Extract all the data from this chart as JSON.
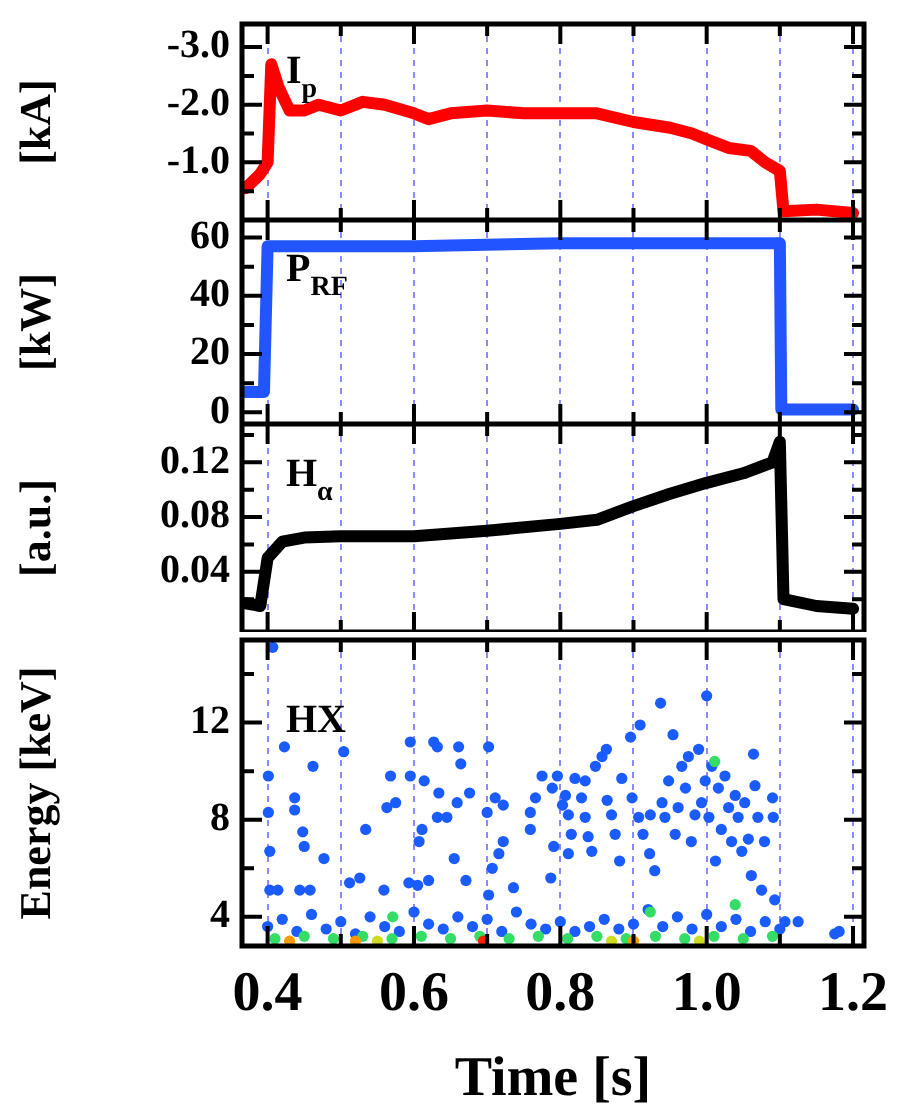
{
  "chart_data": [
    {
      "type": "line",
      "ylabel": "[kA]",
      "annotations": [
        "I$_{p}$"
      ],
      "grid": "x",
      "tick_labels": "y",
      "marker": "none",
      "xlim": [
        0.365,
        1.215
      ],
      "xticks": [
        0.4,
        {
          "value": 0.5,
          "label": null
        },
        0.6,
        {
          "value": 0.7,
          "label": null
        },
        0.8,
        {
          "value": 0.9,
          "label": null
        },
        1,
        {
          "value": 1.1,
          "label": null
        },
        1.2
      ],
      "ylim": [
        0,
        -3.4
      ],
      "yticks": [
        {
          "value": -3,
          "label": "-3.0"
        },
        {
          "value": -2.5,
          "label": null
        },
        {
          "value": -2,
          "label": "-2.0"
        },
        {
          "value": -1.5,
          "label": null
        },
        {
          "value": -1,
          "label": "-1.0"
        },
        {
          "value": -0.5,
          "label": null
        }
      ],
      "x": [
        0.37,
        0.39,
        0.4,
        0.405,
        0.415,
        0.43,
        0.45,
        0.47,
        0.5,
        0.53,
        0.56,
        0.6,
        0.62,
        0.65,
        0.7,
        0.75,
        0.8,
        0.85,
        0.9,
        0.95,
        0.98,
        1.0,
        1.03,
        1.06,
        1.08,
        1.1,
        1.105,
        1.15,
        1.2
      ],
      "series": [
        {
          "color": "#ff0000",
          "values": [
            -0.55,
            -0.8,
            -1.0,
            -2.7,
            -2.3,
            -1.9,
            -1.9,
            -2.0,
            -1.9,
            -2.05,
            -2.0,
            -1.85,
            -1.75,
            -1.85,
            -1.9,
            -1.85,
            -1.85,
            -1.85,
            -1.7,
            -1.6,
            -1.5,
            -1.4,
            -1.25,
            -1.2,
            -1.0,
            -0.85,
            -0.15,
            -0.18,
            -0.12
          ]
        }
      ]
    },
    {
      "type": "line",
      "ylabel": "[kW]",
      "annotations": [
        "P$_{RF}$"
      ],
      "grid": "x",
      "tick_labels": "y",
      "marker": "none",
      "xlim": [
        0.365,
        1.215
      ],
      "xticks": [
        0.4,
        {
          "value": 0.5,
          "label": null
        },
        0.6,
        {
          "value": 0.7,
          "label": null
        },
        0.8,
        {
          "value": 0.9,
          "label": null
        },
        1,
        {
          "value": 1.1,
          "label": null
        },
        1.2
      ],
      "ylim": [
        -4,
        66
      ],
      "yticks": [
        0,
        {
          "value": 10,
          "label": null
        },
        20,
        {
          "value": 30,
          "label": null
        },
        40,
        {
          "value": 50,
          "label": null
        },
        60
      ],
      "x": [
        0.37,
        0.395,
        0.4,
        0.6,
        0.8,
        1.0,
        1.1,
        1.102,
        1.2
      ],
      "series": [
        {
          "color": "#2255ff",
          "values": [
            7,
            7,
            57,
            57,
            58,
            58,
            58,
            1,
            1
          ]
        }
      ]
    },
    {
      "type": "line",
      "ylabel": "[a.u.]",
      "annotations": [
        "H$_{α}$"
      ],
      "grid": "x",
      "tick_labels": "y",
      "marker": "none",
      "xlim": [
        0.365,
        1.215
      ],
      "xticks": [
        0.4,
        {
          "value": 0.5,
          "label": null
        },
        0.6,
        {
          "value": 0.7,
          "label": null
        },
        0.8,
        {
          "value": 0.9,
          "label": null
        },
        1,
        {
          "value": 1.1,
          "label": null
        },
        1.2
      ],
      "ylim": [
        -0.004,
        0.148
      ],
      "yticks": [
        {
          "value": 0.02,
          "label": null
        },
        0.04,
        {
          "value": 0.06,
          "label": null
        },
        0.08,
        {
          "value": 0.1,
          "label": null
        },
        0.12,
        {
          "value": 0.14,
          "label": null
        }
      ],
      "x": [
        0.37,
        0.39,
        0.4,
        0.42,
        0.45,
        0.5,
        0.6,
        0.7,
        0.8,
        0.85,
        0.9,
        0.95,
        1.0,
        1.05,
        1.09,
        1.1,
        1.105,
        1.15,
        1.2
      ],
      "series": [
        {
          "color": "#000000",
          "values": [
            0.017,
            0.015,
            0.05,
            0.062,
            0.065,
            0.066,
            0.066,
            0.07,
            0.075,
            0.078,
            0.088,
            0.097,
            0.105,
            0.112,
            0.12,
            0.135,
            0.02,
            0.015,
            0.013
          ]
        }
      ]
    },
    {
      "type": "scatter",
      "ylabel": "Energy [keV]",
      "xlabel": "Time [s]",
      "annotations": [
        "HX"
      ],
      "grid": "x",
      "marker": "circle",
      "xlim": [
        0.365,
        1.215
      ],
      "xticks": [
        0.4,
        {
          "value": 0.5,
          "label": null
        },
        0.6,
        {
          "value": 0.7,
          "label": null
        },
        0.8,
        {
          "value": 0.9,
          "label": null
        },
        {
          "value": 1,
          "label": "1.0"
        },
        {
          "value": 1.1,
          "label": null
        },
        1.2
      ],
      "ylim": [
        2.8,
        15.4
      ],
      "yticks": [
        4,
        {
          "value": 6,
          "label": null
        },
        8,
        {
          "value": 10,
          "label": null
        },
        12,
        {
          "value": 14,
          "label": null
        }
      ],
      "series": [
        {
          "color": "#1a5cff",
          "x": [
            0.407,
            0.423,
            0.401,
            0.401,
            0.403,
            0.403,
            0.414,
            0.462,
            0.437,
            0.437,
            0.448,
            0.45,
            0.477,
            0.444,
            0.458,
            0.504,
            0.512,
            0.526,
            0.534,
            0.559,
            0.563,
            0.568,
            0.575,
            0.595,
            0.595,
            0.593,
            0.605,
            0.611,
            0.607,
            0.614,
            0.62,
            0.627,
            0.632,
            0.634,
            0.632,
            0.645,
            0.655,
            0.661,
            0.664,
            0.659,
            0.676,
            0.671,
            0.702,
            0.7,
            0.711,
            0.722,
            0.707,
            0.716,
            0.722,
            0.702,
            0.736,
            0.759,
            0.759,
            0.766,
            0.775,
            0.787,
            0.791,
            0.789,
            0.796,
            0.803,
            0.807,
            0.811,
            0.815,
            0.811,
            0.82,
            0.829,
            0.834,
            0.838,
            0.843,
            0.834,
            0.848,
            0.857,
            0.863,
            0.864,
            0.87,
            0.875,
            0.881,
            0.884,
            0.896,
            0.909,
            0.898,
            0.907,
            0.913,
            0.922,
            0.929,
            0.937,
            0.923,
            0.939,
            0.943,
            0.948,
            0.954,
            0.957,
            0.961,
            0.966,
            0.971,
            0.975,
            0.979,
            0.984,
            0.989,
            0.993,
            0.998,
            1.0,
            1.003,
            1.007,
            1.012,
            1.016,
            1.02,
            1.025,
            1.03,
            1.034,
            1.039,
            1.043,
            1.048,
            1.052,
            1.057,
            1.061,
            1.064,
            1.066,
            1.07,
            1.075,
            1.079,
            1.09,
            1.091,
            1.093,
            1.107,
            1.125,
            1.175,
            1.181,
            0.4,
            0.42,
            0.44,
            0.46,
            0.48,
            0.5,
            0.52,
            0.54,
            0.56,
            0.58,
            0.6,
            0.62,
            0.64,
            0.66,
            0.68,
            0.7,
            0.72,
            0.74,
            0.76,
            0.78,
            0.8,
            0.82,
            0.84,
            0.86,
            0.88,
            0.9,
            0.92,
            0.94,
            0.96,
            0.98,
            1.0,
            1.02,
            1.04,
            1.06,
            1.08,
            1.1
          ],
          "values": [
            15.1,
            11.0,
            9.8,
            8.3,
            6.7,
            5.1,
            5.1,
            10.2,
            8.9,
            8.4,
            7.5,
            6.9,
            6.4,
            5.1,
            5.1,
            10.8,
            5.4,
            5.6,
            7.6,
            5.1,
            8.5,
            9.8,
            8.7,
            11.2,
            9.8,
            5.4,
            5.3,
            7.6,
            7.1,
            9.6,
            5.5,
            11.2,
            11.0,
            9.1,
            8.1,
            8.1,
            6.4,
            11.0,
            10.3,
            8.7,
            9.1,
            5.5,
            11.0,
            8.3,
            8.9,
            8.6,
            6.0,
            6.6,
            7.1,
            4.9,
            5.2,
            8.3,
            7.6,
            8.9,
            9.8,
            5.6,
            6.9,
            9.3,
            9.8,
            8.6,
            9.0,
            8.2,
            7.4,
            6.6,
            9.7,
            8.9,
            8.1,
            7.3,
            6.7,
            9.6,
            10.2,
            10.6,
            10.9,
            8.8,
            8.2,
            7.4,
            6.3,
            9.7,
            11.4,
            11.9,
            8.9,
            8.1,
            7.4,
            6.6,
            5.9,
            12.8,
            8.2,
            8.7,
            8.1,
            9.6,
            11.5,
            7.4,
            8.5,
            10.2,
            9.3,
            10.6,
            7.1,
            8.2,
            10.9,
            8.7,
            9.6,
            13.1,
            8.1,
            10.2,
            6.3,
            9.3,
            7.6,
            9.8,
            8.5,
            7.1,
            9.0,
            8.1,
            6.7,
            8.7,
            7.2,
            5.7,
            10.7,
            9.4,
            8.1,
            5.1,
            7.1,
            8.9,
            8.1,
            4.7,
            3.8,
            3.8,
            3.3,
            3.4,
            3.6,
            3.9,
            3.4,
            4.1,
            3.5,
            3.8,
            3.3,
            4.0,
            3.6,
            3.4,
            4.2,
            3.7,
            3.5,
            4.0,
            3.6,
            3.9,
            3.4,
            4.2,
            3.7,
            3.5,
            3.8,
            3.4,
            3.6,
            3.9,
            3.5,
            3.7,
            4.3,
            3.6,
            4.0,
            3.5,
            4.1,
            3.6,
            3.9,
            3.4,
            3.8,
            3.5
          ]
        },
        {
          "color": "#33dd66",
          "x": [
            0.41,
            0.45,
            0.49,
            0.53,
            0.57,
            0.61,
            0.65,
            0.69,
            0.73,
            0.77,
            0.81,
            0.85,
            0.89,
            0.93,
            0.97,
            1.01,
            1.05,
            1.09,
            1.011,
            0.923,
            1.039,
            0.571
          ],
          "values": [
            3.1,
            3.2,
            3.1,
            3.2,
            3.1,
            3.2,
            3.1,
            3.2,
            3.1,
            3.2,
            3.1,
            3.2,
            3.1,
            3.2,
            3.1,
            3.2,
            3.1,
            3.2,
            10.4,
            4.2,
            4.5,
            4.0
          ]
        },
        {
          "color": "#ccdd22",
          "x": [
            0.55,
            0.87,
            0.99
          ],
          "values": [
            3.0,
            3.0,
            3.0
          ]
        },
        {
          "color": "#ff9900",
          "x": [
            0.43,
            0.52,
            0.9
          ],
          "values": [
            3.0,
            3.0,
            3.0
          ]
        },
        {
          "color": "#ff2200",
          "x": [
            0.695
          ],
          "values": [
            3.0
          ]
        }
      ]
    }
  ]
}
